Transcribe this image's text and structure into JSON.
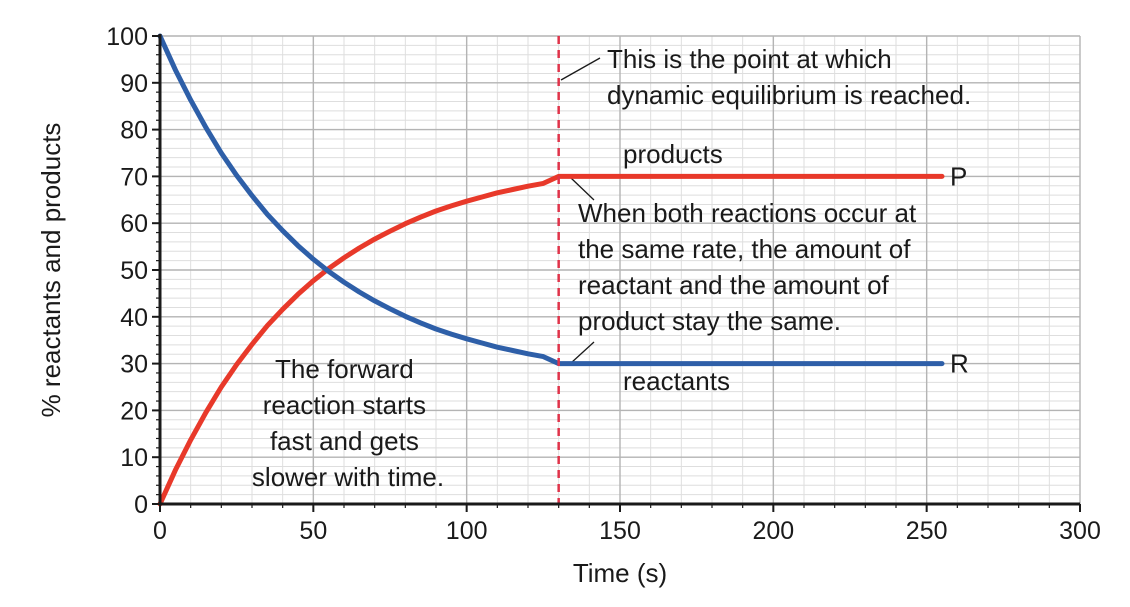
{
  "chart_data": {
    "type": "line",
    "xlabel": "Time (s)",
    "ylabel": "% reactants and products",
    "xlim": [
      0,
      300
    ],
    "ylim": [
      0,
      100
    ],
    "x_major_step": 50,
    "y_major_step": 10,
    "x_ticks": [
      "0",
      "50",
      "100",
      "150",
      "200",
      "250",
      "300"
    ],
    "y_ticks": [
      "0",
      "10",
      "20",
      "30",
      "40",
      "50",
      "60",
      "70",
      "80",
      "90",
      "100"
    ],
    "grid": true,
    "series": [
      {
        "name": "products",
        "end_label": "P",
        "color": "#e8392a",
        "x": [
          0,
          5,
          10,
          15,
          20,
          25,
          30,
          35,
          40,
          45,
          50,
          55,
          60,
          65,
          70,
          75,
          80,
          85,
          90,
          95,
          100,
          105,
          110,
          115,
          120,
          125,
          130,
          140,
          160,
          180,
          200,
          220,
          240,
          255
        ],
        "y": [
          0,
          7.2,
          13.7,
          19.6,
          25,
          29.8,
          34.1,
          38.1,
          41.6,
          44.8,
          47.7,
          50.3,
          52.6,
          54.7,
          56.6,
          58.3,
          59.9,
          61.3,
          62.6,
          63.7,
          64.7,
          65.6,
          66.5,
          67.2,
          67.9,
          68.5,
          70,
          70,
          70,
          70,
          70,
          70,
          70,
          70
        ]
      },
      {
        "name": "reactants",
        "end_label": "R",
        "color": "#2e5fa8",
        "x": [
          0,
          5,
          10,
          15,
          20,
          25,
          30,
          35,
          40,
          45,
          50,
          55,
          60,
          65,
          70,
          75,
          80,
          85,
          90,
          95,
          100,
          105,
          110,
          115,
          120,
          125,
          130,
          140,
          160,
          180,
          200,
          220,
          240,
          255
        ],
        "y": [
          100,
          92.8,
          86.3,
          80.4,
          75,
          70.2,
          65.9,
          61.9,
          58.4,
          55.2,
          52.3,
          49.7,
          47.4,
          45.3,
          43.4,
          41.7,
          40.1,
          38.7,
          37.4,
          36.3,
          35.3,
          34.4,
          33.5,
          32.8,
          32.1,
          31.5,
          30,
          30,
          30,
          30,
          30,
          30,
          30,
          30
        ]
      }
    ],
    "equilibrium_x": 130,
    "equilibrium_line_color": "#e0334a",
    "annotations": {
      "equilibrium_point": [
        "This is the point at which",
        "dynamic equilibrium is reached."
      ],
      "same_rate": [
        "When both reactions occur at",
        "the same rate, the amount of",
        "reactant and the amount of",
        "product stay the same."
      ],
      "forward_reaction": [
        "The forward",
        "reaction starts",
        "fast and gets",
        "slower with time."
      ],
      "products_label": "products",
      "reactants_label": "reactants"
    }
  }
}
